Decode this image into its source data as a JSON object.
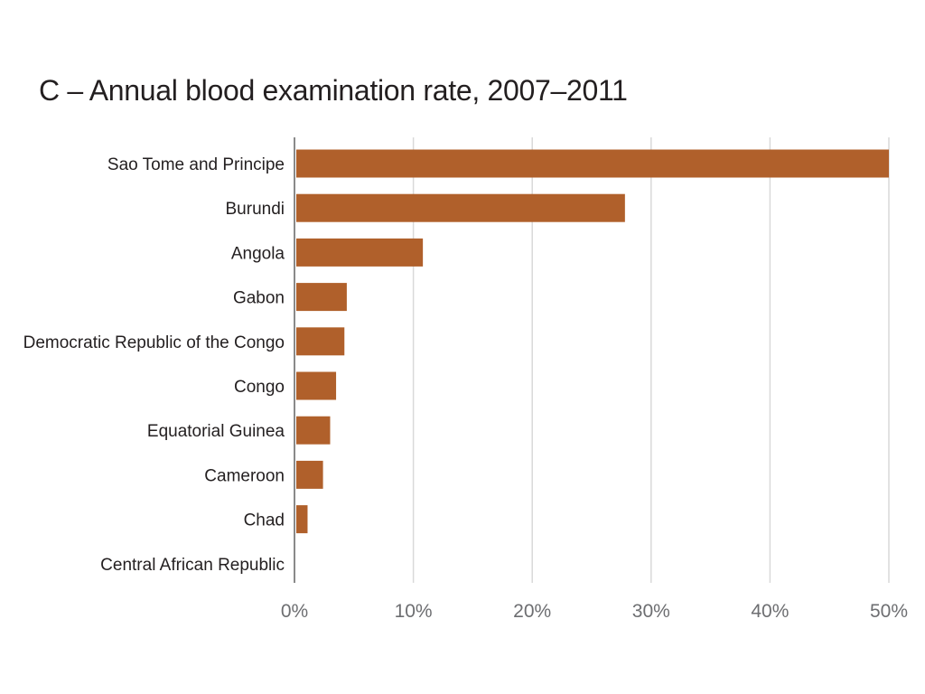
{
  "chart_data": {
    "type": "bar",
    "orientation": "horizontal",
    "title": "C – Annual blood examination rate, 2007–2011",
    "xlabel": "",
    "ylabel": "",
    "categories": [
      "Sao Tome and Principe",
      "Burundi",
      "Angola",
      "Gabon",
      "Democratic Republic of the Congo",
      "Congo",
      "Equatorial Guinea",
      "Cameroon",
      "Chad",
      "Central African Republic"
    ],
    "values": [
      50.0,
      27.8,
      10.8,
      4.4,
      4.2,
      3.5,
      3.0,
      2.4,
      1.1,
      0.0
    ],
    "xlim": [
      0,
      50
    ],
    "ticks": [
      "0%",
      "10%",
      "20%",
      "30%",
      "40%",
      "50%"
    ],
    "tick_values": [
      0,
      10,
      20,
      30,
      40,
      50
    ],
    "grid": "vertical",
    "bar_color": "#b0602b",
    "grid_color": "#d9d9d9",
    "axis_color": "#8a8a8a"
  }
}
